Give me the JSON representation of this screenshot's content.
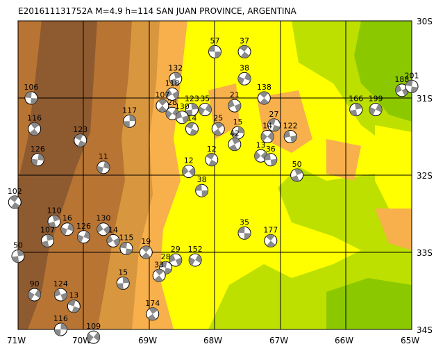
{
  "header": {
    "title": "E201611131752A M=4.9 h=114 SAN JUAN PROVINCE, ARGENTINA"
  },
  "axes": {
    "lon": [
      "71W",
      "70W",
      "69W",
      "68W",
      "67W",
      "66W",
      "65W"
    ],
    "lat": [
      "30S",
      "31S",
      "32S",
      "33S",
      "34S"
    ]
  },
  "colors": {
    "lowland_green": "#8cc800",
    "plain_green": "#bde000",
    "yellow": "#ffff00",
    "orange": "#f7b04b",
    "foothill": "#d8973e",
    "mountain": "#b87433",
    "high_mountain": "#8e5a30",
    "beachball_fill": "#8a8a8a",
    "grid": "#000000"
  },
  "mechanisms": [
    {
      "label": "57",
      "lon": -68.0,
      "lat": -30.4
    },
    {
      "label": "37",
      "lon": -67.55,
      "lat": -30.4
    },
    {
      "label": "132",
      "lon": -68.6,
      "lat": -30.75
    },
    {
      "label": "38",
      "lon": -67.55,
      "lat": -30.75
    },
    {
      "label": "118",
      "lon": -68.65,
      "lat": -30.95
    },
    {
      "label": "106",
      "lon": -70.8,
      "lat": -31.0
    },
    {
      "label": "138",
      "lon": -67.25,
      "lat": -31.0
    },
    {
      "label": "166",
      "lon": -65.85,
      "lat": -31.15
    },
    {
      "label": "199",
      "lon": -65.55,
      "lat": -31.15
    },
    {
      "label": "188",
      "lon": -65.15,
      "lat": -30.9
    },
    {
      "label": "201",
      "lon": -65.0,
      "lat": -30.85
    },
    {
      "label": "107",
      "lon": -68.8,
      "lat": -31.1
    },
    {
      "label": "123",
      "lon": -68.35,
      "lat": -31.15
    },
    {
      "label": "35",
      "lon": -68.15,
      "lat": -31.15
    },
    {
      "label": "21",
      "lon": -67.7,
      "lat": -31.1
    },
    {
      "label": "27",
      "lon": -67.1,
      "lat": -31.35
    },
    {
      "label": "116",
      "lon": -70.75,
      "lat": -31.4
    },
    {
      "label": "117",
      "lon": -69.3,
      "lat": -31.3
    },
    {
      "label": "28",
      "lon": -68.65,
      "lat": -31.2
    },
    {
      "label": "130",
      "lon": -68.5,
      "lat": -31.25
    },
    {
      "label": "14",
      "lon": -68.35,
      "lat": -31.4
    },
    {
      "label": "25",
      "lon": -67.95,
      "lat": -31.4
    },
    {
      "label": "15",
      "lon": -67.65,
      "lat": -31.45
    },
    {
      "label": "14",
      "lon": -67.2,
      "lat": -31.5
    },
    {
      "label": "122",
      "lon": -66.85,
      "lat": -31.5
    },
    {
      "label": "123",
      "lon": -70.05,
      "lat": -31.55
    },
    {
      "label": "42",
      "lon": -67.7,
      "lat": -31.6
    },
    {
      "label": "126",
      "lon": -70.7,
      "lat": -31.8
    },
    {
      "label": "13",
      "lon": -67.3,
      "lat": -31.75
    },
    {
      "label": "36",
      "lon": -67.15,
      "lat": -31.8
    },
    {
      "label": "12",
      "lon": -68.05,
      "lat": -31.8
    },
    {
      "label": "50",
      "lon": -66.75,
      "lat": -32.0
    },
    {
      "label": "11",
      "lon": -69.7,
      "lat": -31.9
    },
    {
      "label": "12",
      "lon": -68.4,
      "lat": -31.95
    },
    {
      "label": "38",
      "lon": -68.2,
      "lat": -32.2
    },
    {
      "label": "102",
      "lon": -71.05,
      "lat": -32.35
    },
    {
      "label": "110",
      "lon": -70.45,
      "lat": -32.6
    },
    {
      "label": "16",
      "lon": -70.25,
      "lat": -32.7
    },
    {
      "label": "130",
      "lon": -69.7,
      "lat": -32.7
    },
    {
      "label": "35",
      "lon": -67.55,
      "lat": -32.75
    },
    {
      "label": "177",
      "lon": -67.15,
      "lat": -32.85
    },
    {
      "label": "107",
      "lon": -70.55,
      "lat": -32.85
    },
    {
      "label": "126",
      "lon": -70.0,
      "lat": -32.8
    },
    {
      "label": "14",
      "lon": -69.55,
      "lat": -32.85
    },
    {
      "label": "115",
      "lon": -69.35,
      "lat": -32.95
    },
    {
      "label": "19",
      "lon": -69.05,
      "lat": -33.0
    },
    {
      "label": "50",
      "lon": -71.0,
      "lat": -33.05
    },
    {
      "label": "152",
      "lon": -68.3,
      "lat": -33.1
    },
    {
      "label": "29",
      "lon": -68.6,
      "lat": -33.1
    },
    {
      "label": "28",
      "lon": -68.75,
      "lat": -33.2
    },
    {
      "label": "33",
      "lon": -68.85,
      "lat": -33.3
    },
    {
      "label": "15",
      "lon": -69.4,
      "lat": -33.4
    },
    {
      "label": "90",
      "lon": -70.75,
      "lat": -33.55
    },
    {
      "label": "124",
      "lon": -70.35,
      "lat": -33.55
    },
    {
      "label": "13",
      "lon": -70.15,
      "lat": -33.7
    },
    {
      "label": "174",
      "lon": -68.95,
      "lat": -33.8
    },
    {
      "label": "116",
      "lon": -70.35,
      "lat": -34.0
    },
    {
      "label": "109",
      "lon": -69.85,
      "lat": -34.1
    }
  ]
}
